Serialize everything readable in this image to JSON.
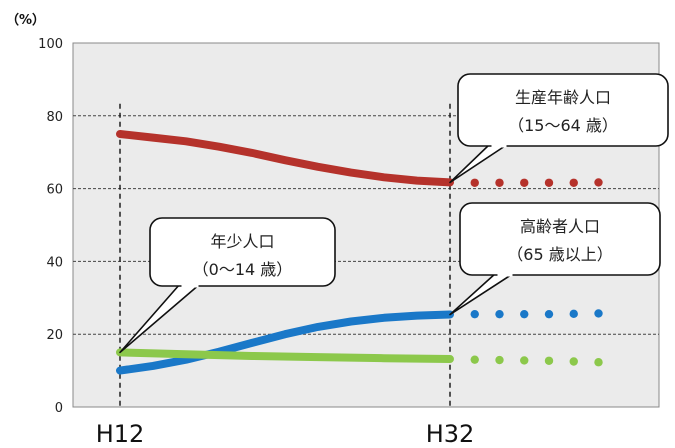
{
  "chart_data": {
    "type": "line",
    "y_unit_label": "（%）",
    "ylim": [
      0,
      100
    ],
    "y_ticks": [
      0,
      20,
      40,
      60,
      80,
      100
    ],
    "x_ticks": [
      {
        "label": "H12",
        "x": 12
      },
      {
        "label": "H32",
        "x": 32
      }
    ],
    "xlim": [
      12,
      42
    ],
    "grid": true,
    "series": [
      {
        "name": "生産年齢人口",
        "color": "#b5322b",
        "solid": [
          [
            12,
            75
          ],
          [
            14,
            74
          ],
          [
            16,
            73
          ],
          [
            18,
            71.5
          ],
          [
            20,
            69.8
          ],
          [
            22,
            67.8
          ],
          [
            24,
            66
          ],
          [
            26,
            64.4
          ],
          [
            28,
            63.1
          ],
          [
            30,
            62.2
          ],
          [
            32,
            61.7
          ]
        ],
        "dotted": [
          [
            33.5,
            61.6
          ],
          [
            35,
            61.6
          ],
          [
            36.5,
            61.6
          ],
          [
            38,
            61.6
          ],
          [
            39.5,
            61.6
          ],
          [
            41,
            61.7
          ]
        ]
      },
      {
        "name": "高齢者人口",
        "color": "#1a78c8",
        "solid": [
          [
            12,
            10
          ],
          [
            14,
            11.3
          ],
          [
            16,
            13
          ],
          [
            18,
            15.2
          ],
          [
            20,
            17.6
          ],
          [
            22,
            20
          ],
          [
            24,
            22
          ],
          [
            26,
            23.5
          ],
          [
            28,
            24.5
          ],
          [
            30,
            25.1
          ],
          [
            32,
            25.4
          ]
        ],
        "dotted": [
          [
            33.5,
            25.5
          ],
          [
            35,
            25.5
          ],
          [
            36.5,
            25.5
          ],
          [
            38,
            25.5
          ],
          [
            39.5,
            25.6
          ],
          [
            41,
            25.7
          ]
        ]
      },
      {
        "name": "年少人口",
        "color": "#8cc84b",
        "solid": [
          [
            12,
            15
          ],
          [
            16,
            14.5
          ],
          [
            20,
            14
          ],
          [
            24,
            13.7
          ],
          [
            28,
            13.4
          ],
          [
            32,
            13.2
          ]
        ],
        "dotted": [
          [
            33.5,
            13
          ],
          [
            35,
            12.9
          ],
          [
            36.5,
            12.8
          ],
          [
            38,
            12.7
          ],
          [
            39.5,
            12.5
          ],
          [
            41,
            12.3
          ]
        ]
      }
    ],
    "callouts": [
      {
        "lines": [
          "生産年齢人口",
          "（15～64 歳）"
        ],
        "points_to": [
          32,
          61.7
        ]
      },
      {
        "lines": [
          "年少人口",
          "（0～14 歳）"
        ],
        "points_to": [
          12,
          15
        ]
      },
      {
        "lines": [
          "高齢者人口",
          "（65 歳以上）"
        ],
        "points_to": [
          32,
          25.4
        ]
      }
    ]
  }
}
